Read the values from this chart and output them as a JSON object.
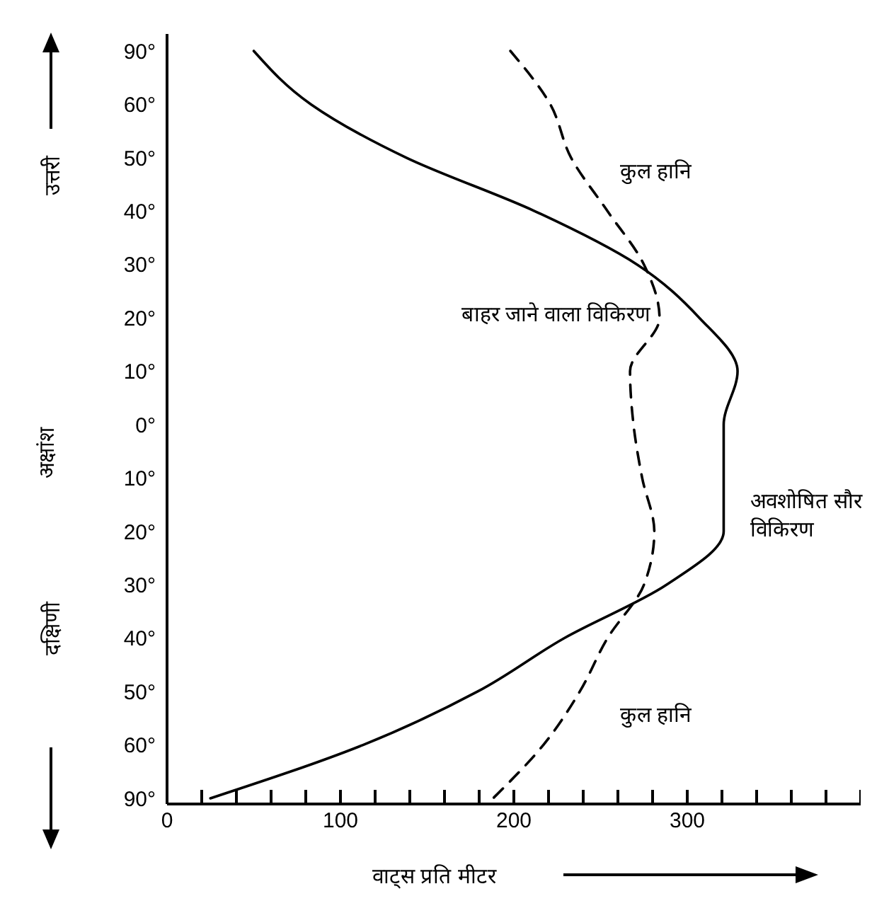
{
  "chart_data": {
    "type": "line",
    "orientation": "horizontal",
    "xlabel": "वाट्स प्रति मीटर",
    "ylabel": "अक्षांश",
    "categories": [
      "90°",
      "60°",
      "50°",
      "40°",
      "30°",
      "20°",
      "10°",
      "0°",
      "10°",
      "20°",
      "30°",
      "40°",
      "50°",
      "60°",
      "90°"
    ],
    "series": [
      {
        "name": "अवशोषित सौर विकिरण",
        "color": "#000000",
        "line_style": "solid",
        "values": [
          50,
          83,
          138,
          212,
          271,
          307,
          329,
          321,
          321,
          321,
          288,
          229,
          179,
          113,
          25
        ]
      },
      {
        "name": "बाहर जाने वाला विकिरण",
        "color": "#000000",
        "line_style": "dashed",
        "values": [
          198,
          221,
          233,
          254,
          275,
          284,
          267,
          269,
          274,
          281,
          275,
          254,
          238,
          217,
          188
        ]
      }
    ],
    "xlim": [
      0,
      400
    ],
    "xticks": [
      0,
      {
        "value": 20,
        "label": null
      },
      {
        "value": 40,
        "label": null
      },
      {
        "value": 60,
        "label": null
      },
      {
        "value": 80,
        "label": null
      },
      100,
      {
        "value": 120,
        "label": null
      },
      {
        "value": 140,
        "label": null
      },
      {
        "value": 160,
        "label": null
      },
      {
        "value": 180,
        "label": null
      },
      200,
      {
        "value": 220,
        "label": null
      },
      {
        "value": 240,
        "label": null
      },
      {
        "value": 260,
        "label": null
      },
      {
        "value": 280,
        "label": null
      },
      300,
      {
        "value": 320,
        "label": null
      },
      {
        "value": 340,
        "label": null
      },
      {
        "value": 360,
        "label": null
      },
      {
        "value": 380,
        "label": null
      },
      {
        "value": 400,
        "label": null
      }
    ],
    "marker": "none",
    "annotations": [
      "कुल हानि",
      "कुल हानि",
      "उत्तरी",
      "दक्षिणी"
    ]
  }
}
